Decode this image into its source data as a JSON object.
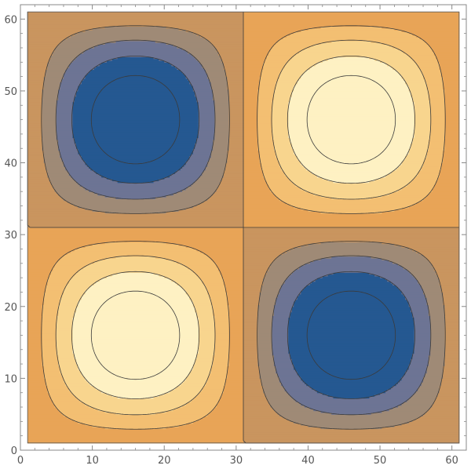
{
  "chart_data": {
    "type": "contour",
    "title": "",
    "xlabel": "",
    "ylabel": "",
    "xlim": [
      0,
      62
    ],
    "ylim": [
      0,
      62
    ],
    "x_ticks": [
      0,
      10,
      20,
      30,
      40,
      50,
      60
    ],
    "y_ticks": [
      0,
      10,
      20,
      30,
      40,
      50,
      60
    ],
    "grid": false,
    "legend": "none",
    "domain": [
      1,
      61
    ],
    "function": "sin(pi*(x-1)/30) * sin(pi*(y-1)/30)",
    "field_extrema": [
      {
        "x": 16,
        "y": 46,
        "value": -1
      },
      {
        "x": 46,
        "y": 46,
        "value": 1
      },
      {
        "x": 16,
        "y": 16,
        "value": 1
      },
      {
        "x": 46,
        "y": 16,
        "value": -1
      }
    ],
    "contour_levels": [
      -0.8,
      -0.6,
      -0.4,
      -0.2,
      0,
      0.2,
      0.4,
      0.6,
      0.8
    ],
    "bands": [
      {
        "from": -1.0,
        "to": -0.8,
        "color": "#255891"
      },
      {
        "from": -0.8,
        "to": -0.6,
        "color": "#255891"
      },
      {
        "from": -0.6,
        "to": -0.4,
        "color": "#6d7494"
      },
      {
        "from": -0.4,
        "to": -0.2,
        "color": "#9f8a76"
      },
      {
        "from": -0.2,
        "to": 0.0,
        "color": "#c9955f"
      },
      {
        "from": 0.0,
        "to": 0.2,
        "color": "#e8a457"
      },
      {
        "from": 0.2,
        "to": 0.4,
        "color": "#f3bf72"
      },
      {
        "from": 0.4,
        "to": 0.6,
        "color": "#f8d58e"
      },
      {
        "from": 0.6,
        "to": 0.8,
        "color": "#fef1c3"
      },
      {
        "from": 0.8,
        "to": 1.0,
        "color": "#fef1c3"
      }
    ]
  }
}
